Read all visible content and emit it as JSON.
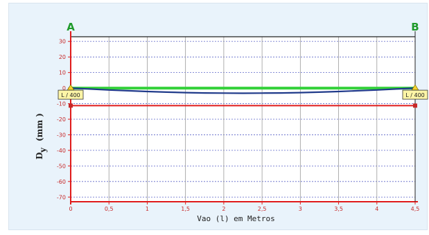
{
  "chart_data": {
    "type": "line",
    "support_left": "A",
    "support_right": "B",
    "xlabel": "Vao   (l)   em Metros",
    "ylabel_main": "D",
    "ylabel_sub": "y",
    "ylabel_unit": "(mm )",
    "xlim": [
      0,
      4.5
    ],
    "ylim": [
      -73,
      33
    ],
    "x_ticks": [
      0,
      0.5,
      1,
      1.5,
      2,
      2.5,
      3,
      3.5,
      4,
      4.5
    ],
    "x_tick_labels": [
      "0",
      "0,5",
      "1",
      "1,5",
      "2",
      "2,5",
      "3",
      "3,5",
      "4",
      "4,5"
    ],
    "y_ticks": [
      30,
      20,
      10,
      0,
      -10,
      -20,
      -30,
      -40,
      -50,
      -60,
      -70
    ],
    "y_tick_labels": [
      "30",
      "20",
      "10",
      "0",
      "-10",
      "-20",
      "-30",
      "-40",
      "-50",
      "-60",
      "-70"
    ],
    "grid": true,
    "limit_label_left": "L / 400",
    "limit_label_right": "L / 400",
    "limit_line_y": -11.25,
    "series": [
      {
        "color": "#35d13b",
        "x": [
          0,
          4.5
        ],
        "y": [
          0,
          0
        ]
      },
      {
        "color": "#1f3a8a",
        "x": [
          0,
          0.25,
          0.5,
          0.75,
          1,
          1.25,
          1.5,
          1.75,
          2,
          2.25,
          2.5,
          2.75,
          3,
          3.25,
          3.5,
          3.75,
          4,
          4.25,
          4.5
        ],
        "y": [
          0,
          -0.6,
          -1.2,
          -1.7,
          -2.2,
          -2.6,
          -2.9,
          -3.1,
          -3.2,
          -3.3,
          -3.2,
          -3.1,
          -2.9,
          -2.6,
          -2.2,
          -1.7,
          -1.2,
          -0.6,
          0
        ]
      }
    ]
  }
}
